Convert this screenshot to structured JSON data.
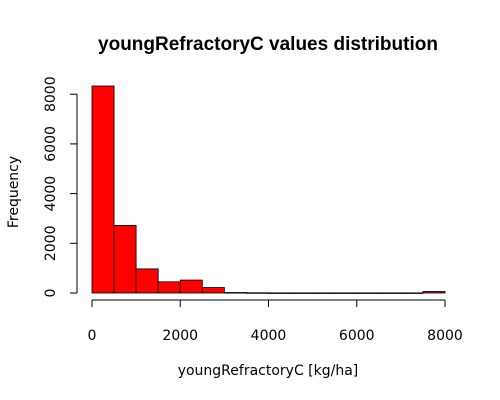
{
  "chart_data": {
    "type": "bar",
    "title": "youngRefractoryC values distribution",
    "xlabel": "youngRefractoryC [kg/ha]",
    "ylabel": "Frequency",
    "bar_color": "#ff0000",
    "bin_edges": [
      0,
      500,
      1000,
      1500,
      2000,
      2500,
      3000,
      3500,
      4000,
      4500,
      5000,
      5500,
      6000,
      6500,
      7000,
      7500,
      8000
    ],
    "values": [
      8330,
      2720,
      970,
      450,
      520,
      220,
      20,
      10,
      5,
      5,
      5,
      5,
      5,
      5,
      5,
      60
    ],
    "xlim": [
      0,
      8000
    ],
    "ylim": [
      0,
      8330
    ],
    "x_ticks": [
      0,
      2000,
      4000,
      6000,
      8000
    ],
    "y_ticks": [
      0,
      2000,
      4000,
      6000,
      8000
    ],
    "x_tick_labels": [
      "0",
      "2000",
      "4000",
      "6000",
      "8000"
    ],
    "y_tick_labels": [
      "0",
      "2000",
      "4000",
      "6000",
      "8000"
    ],
    "grid": false,
    "legend": "none"
  }
}
